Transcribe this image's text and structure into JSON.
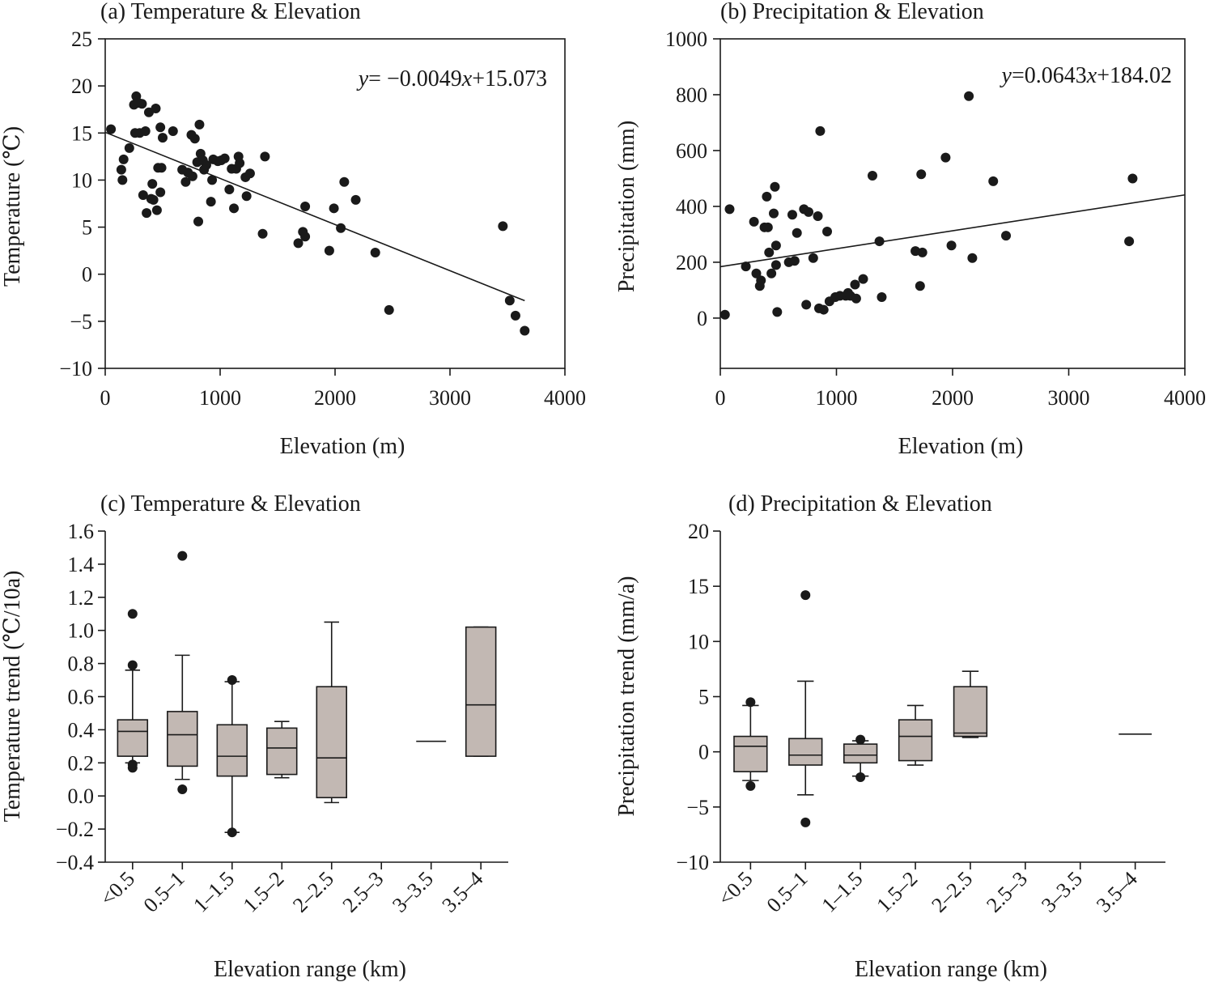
{
  "chart_data": [
    {
      "id": "a",
      "type": "scatter",
      "title": "(a) Temperature & Elevation",
      "xlabel": "Elevation (m)",
      "ylabel": "Temperature (℃)",
      "xlim": [
        0,
        4000
      ],
      "ylim": [
        -10,
        25
      ],
      "xticks": [
        0,
        1000,
        2000,
        3000,
        4000
      ],
      "yticks": [
        -10,
        -5,
        0,
        5,
        10,
        15,
        20,
        25
      ],
      "yticklabels": [
        "−10",
        "−5",
        "0",
        "5",
        "10",
        "15",
        "20",
        "25"
      ],
      "equation": {
        "lhs": "y",
        "mid": "= −0.0049",
        "x": "x",
        "rest": "+15.073"
      },
      "fit": {
        "slope": -0.0049,
        "intercept": 15.073,
        "x_range": [
          0,
          3650
        ]
      },
      "points": [
        [
          50,
          15.4
        ],
        [
          140,
          11.1
        ],
        [
          150,
          10
        ],
        [
          160,
          12.2
        ],
        [
          210,
          13.4
        ],
        [
          250,
          18
        ],
        [
          260,
          15
        ],
        [
          270,
          18.9
        ],
        [
          290,
          18.2
        ],
        [
          300,
          15
        ],
        [
          320,
          18.1
        ],
        [
          330,
          8.4
        ],
        [
          350,
          15.2
        ],
        [
          360,
          6.5
        ],
        [
          380,
          17.2
        ],
        [
          400,
          8
        ],
        [
          410,
          9.6
        ],
        [
          420,
          7.9
        ],
        [
          440,
          17.6
        ],
        [
          450,
          6.8
        ],
        [
          460,
          11.3
        ],
        [
          480,
          15.6
        ],
        [
          480,
          8.7
        ],
        [
          490,
          11.3
        ],
        [
          500,
          14.5
        ],
        [
          590,
          15.2
        ],
        [
          670,
          11.1
        ],
        [
          700,
          9.8
        ],
        [
          720,
          10.8
        ],
        [
          750,
          14.8
        ],
        [
          760,
          10.4
        ],
        [
          780,
          14.4
        ],
        [
          800,
          11.9
        ],
        [
          810,
          5.6
        ],
        [
          820,
          15.9
        ],
        [
          830,
          12.8
        ],
        [
          850,
          12.1
        ],
        [
          860,
          11.1
        ],
        [
          880,
          11.6
        ],
        [
          920,
          7.7
        ],
        [
          930,
          10
        ],
        [
          940,
          12.2
        ],
        [
          980,
          12
        ],
        [
          1010,
          12.1
        ],
        [
          1040,
          12.3
        ],
        [
          1080,
          9
        ],
        [
          1100,
          11.2
        ],
        [
          1120,
          7
        ],
        [
          1140,
          11.2
        ],
        [
          1160,
          12.5
        ],
        [
          1170,
          11.8
        ],
        [
          1220,
          10.3
        ],
        [
          1230,
          8.3
        ],
        [
          1260,
          10.7
        ],
        [
          1370,
          4.3
        ],
        [
          1390,
          12.5
        ],
        [
          1680,
          3.3
        ],
        [
          1720,
          4.5
        ],
        [
          1740,
          4
        ],
        [
          1740,
          7.2
        ],
        [
          1950,
          2.5
        ],
        [
          1990,
          7
        ],
        [
          2050,
          4.9
        ],
        [
          2080,
          9.8
        ],
        [
          2180,
          7.9
        ],
        [
          2350,
          2.3
        ],
        [
          2470,
          -3.8
        ],
        [
          3460,
          5.1
        ],
        [
          3520,
          -2.8
        ],
        [
          3570,
          -4.4
        ],
        [
          3650,
          -6
        ]
      ]
    },
    {
      "id": "b",
      "type": "scatter",
      "title": "(b) Precipitation & Elevation",
      "xlabel": "Elevation (m)",
      "ylabel": "Precipitation (mm)",
      "xlim": [
        0,
        4000
      ],
      "ylim": [
        -180,
        1000
      ],
      "xticks": [
        0,
        1000,
        2000,
        3000,
        4000
      ],
      "yticks": [
        0,
        200,
        400,
        600,
        800,
        1000
      ],
      "yticklabels": [
        "0",
        "200",
        "400",
        "600",
        "800",
        "1000"
      ],
      "equation": {
        "lhs": "y",
        "mid": "=0.0643",
        "x": "x",
        "rest": "+184.02"
      },
      "fit": {
        "slope": 0.0643,
        "intercept": 184.02,
        "x_range": [
          0,
          4000
        ]
      },
      "points": [
        [
          40,
          12
        ],
        [
          80,
          390
        ],
        [
          220,
          185
        ],
        [
          290,
          345
        ],
        [
          310,
          160
        ],
        [
          340,
          115
        ],
        [
          350,
          135
        ],
        [
          380,
          325
        ],
        [
          400,
          435
        ],
        [
          410,
          325
        ],
        [
          420,
          235
        ],
        [
          440,
          160
        ],
        [
          460,
          375
        ],
        [
          470,
          470
        ],
        [
          480,
          190
        ],
        [
          480,
          260
        ],
        [
          490,
          22
        ],
        [
          590,
          200
        ],
        [
          620,
          370
        ],
        [
          640,
          205
        ],
        [
          660,
          305
        ],
        [
          720,
          390
        ],
        [
          740,
          48
        ],
        [
          760,
          380
        ],
        [
          800,
          215
        ],
        [
          840,
          365
        ],
        [
          850,
          35
        ],
        [
          860,
          670
        ],
        [
          890,
          30
        ],
        [
          920,
          310
        ],
        [
          940,
          60
        ],
        [
          990,
          75
        ],
        [
          1030,
          80
        ],
        [
          1080,
          80
        ],
        [
          1100,
          90
        ],
        [
          1120,
          80
        ],
        [
          1160,
          120
        ],
        [
          1170,
          70
        ],
        [
          1230,
          140
        ],
        [
          1310,
          510
        ],
        [
          1370,
          275
        ],
        [
          1390,
          75
        ],
        [
          1680,
          240
        ],
        [
          1720,
          115
        ],
        [
          1730,
          515
        ],
        [
          1740,
          235
        ],
        [
          1940,
          575
        ],
        [
          1990,
          260
        ],
        [
          2140,
          795
        ],
        [
          2170,
          215
        ],
        [
          2350,
          490
        ],
        [
          2460,
          295
        ],
        [
          3520,
          275
        ],
        [
          3550,
          500
        ]
      ]
    },
    {
      "id": "c",
      "type": "box",
      "title": "(c) Temperature & Elevation",
      "xlabel": "Elevation range (km)",
      "ylabel": "Temperature trend (℃/10a)",
      "ylim": [
        -0.4,
        1.6
      ],
      "yticks": [
        -0.4,
        -0.2,
        0.0,
        0.2,
        0.4,
        0.6,
        0.8,
        1.0,
        1.2,
        1.4,
        1.6
      ],
      "yticklabels": [
        "−0.4",
        "−0.2",
        "0.0",
        "0.2",
        "0.4",
        "0.6",
        "0.8",
        "1.0",
        "1.2",
        "1.4",
        "1.6"
      ],
      "categories": [
        "<0.5",
        "0.5–1",
        "1–1.5",
        "1.5–2",
        "2–2.5",
        "2.5–3",
        "3–3.5",
        "3.5–4"
      ],
      "boxes": [
        {
          "category": "<0.5",
          "whisker_low": 0.2,
          "q1": 0.24,
          "median": 0.39,
          "q3": 0.46,
          "whisker_high": 0.76,
          "outliers": [
            1.1,
            0.79,
            0.17,
            0.19
          ]
        },
        {
          "category": "0.5–1",
          "whisker_low": 0.1,
          "q1": 0.18,
          "median": 0.37,
          "q3": 0.51,
          "whisker_high": 0.85,
          "outliers": [
            1.45,
            0.04
          ]
        },
        {
          "category": "1–1.5",
          "whisker_low": -0.22,
          "q1": 0.12,
          "median": 0.24,
          "q3": 0.43,
          "whisker_high": 0.69,
          "outliers": [
            0.7,
            -0.22
          ]
        },
        {
          "category": "1.5–2",
          "whisker_low": 0.11,
          "q1": 0.13,
          "median": 0.29,
          "q3": 0.41,
          "whisker_high": 0.45,
          "outliers": []
        },
        {
          "category": "2–2.5",
          "whisker_low": -0.04,
          "q1": -0.01,
          "median": 0.23,
          "q3": 0.66,
          "whisker_high": 1.05,
          "outliers": []
        },
        {
          "category": "2.5–3",
          "empty": true
        },
        {
          "category": "3–3.5",
          "single": 0.33
        },
        {
          "category": "3.5–4",
          "whisker_low": 0.24,
          "q1": 0.24,
          "median": 0.55,
          "q3": 1.02,
          "whisker_high": 1.02,
          "outliers": []
        }
      ]
    },
    {
      "id": "d",
      "type": "box",
      "title": "(d) Precipitation & Elevation",
      "xlabel": "Elevation range (km)",
      "ylabel": "Precipitation trend (mm/a)",
      "ylim": [
        -10,
        20
      ],
      "yticks": [
        -10,
        -5,
        0,
        5,
        10,
        15,
        20
      ],
      "yticklabels": [
        "−10",
        "−5",
        "0",
        "5",
        "10",
        "15",
        "20"
      ],
      "categories": [
        "<0.5",
        "0.5–1",
        "1–1.5",
        "1.5–2",
        "2–2.5",
        "2.5–3",
        "3–3.5",
        "3.5–4"
      ],
      "boxes": [
        {
          "category": "<0.5",
          "whisker_low": -2.6,
          "q1": -1.8,
          "median": 0.5,
          "q3": 1.4,
          "whisker_high": 4.2,
          "outliers": [
            4.5,
            -3.1
          ]
        },
        {
          "category": "0.5–1",
          "whisker_low": -3.9,
          "q1": -1.2,
          "median": -0.3,
          "q3": 1.2,
          "whisker_high": 6.4,
          "outliers": [
            14.2,
            -6.4
          ]
        },
        {
          "category": "1–1.5",
          "whisker_low": -2.2,
          "q1": -1.0,
          "median": -0.3,
          "q3": 0.7,
          "whisker_high": 1.0,
          "outliers": [
            1.1,
            -2.3
          ]
        },
        {
          "category": "1.5–2",
          "whisker_low": -1.2,
          "q1": -0.8,
          "median": 1.4,
          "q3": 2.9,
          "whisker_high": 4.2,
          "outliers": []
        },
        {
          "category": "2–2.5",
          "whisker_low": 1.3,
          "q1": 1.4,
          "median": 1.7,
          "q3": 5.9,
          "whisker_high": 7.3,
          "outliers": []
        },
        {
          "category": "2.5–3",
          "empty": true
        },
        {
          "category": "3–3.5",
          "empty": true
        },
        {
          "category": "3.5–4",
          "single": 1.6
        }
      ]
    }
  ]
}
